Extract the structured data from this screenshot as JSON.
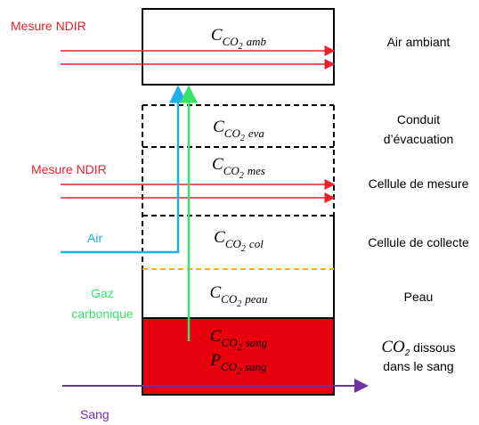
{
  "top_box": {
    "label": {
      "symbol": "C",
      "sub": "CO",
      "index": "2",
      "qualifier": "amb"
    }
  },
  "cells": [
    {
      "label": {
        "symbol": "C",
        "sub": "CO",
        "index": "2",
        "qualifier": "eva"
      }
    },
    {
      "label": {
        "symbol": "C",
        "sub": "CO",
        "index": "2",
        "qualifier": "mes"
      }
    },
    {
      "label": {
        "symbol": "C",
        "sub": "CO",
        "index": "2",
        "qualifier": "col"
      }
    },
    {
      "label": {
        "symbol": "C",
        "sub": "CO",
        "index": "2",
        "qualifier": "peau"
      }
    },
    {
      "label": {
        "symbol": "C",
        "sub": "CO",
        "index": "2",
        "qualifier": "sang"
      }
    },
    {
      "label": {
        "symbol": "P",
        "sub": "CO",
        "index": "2",
        "qualifier": "sang"
      }
    }
  ],
  "right_labels": [
    {
      "lines": [
        "Air ambiant"
      ]
    },
    {
      "lines": [
        "Conduit",
        "d’évacuation"
      ]
    },
    {
      "lines": [
        "Cellule de mesure"
      ]
    },
    {
      "lines": [
        "Cellule de collecte"
      ]
    },
    {
      "lines": [
        "Peau"
      ]
    },
    {
      "lines": [
        "dans le sang"
      ],
      "formula": {
        "symbol": "CO",
        "index": "2",
        "text": " dissous"
      }
    }
  ],
  "left_labels": {
    "ndir_top": "Mesure NDIR",
    "ndir_mid": "Mesure NDIR",
    "air": "Air",
    "gaz": [
      "Gaz",
      "carbonique"
    ],
    "sang": "Sang"
  }
}
